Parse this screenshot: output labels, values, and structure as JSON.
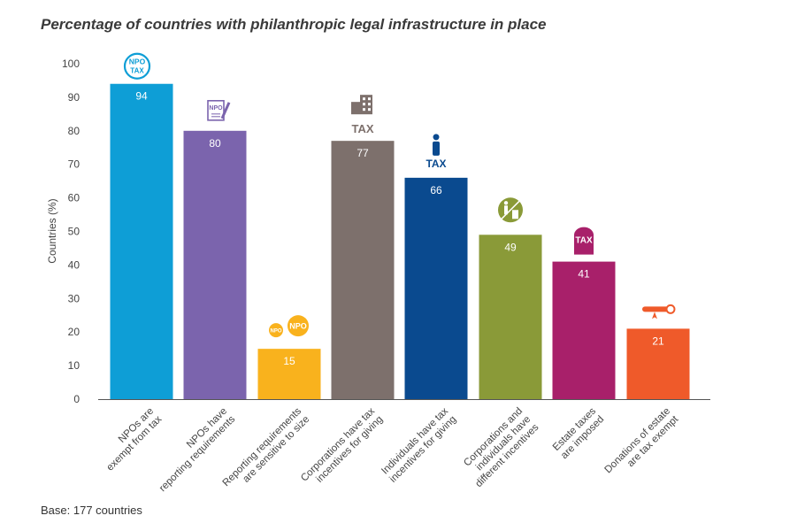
{
  "chart_data": {
    "type": "bar",
    "title": "Percentage of countries with philanthropic legal infrastructure in place",
    "ylabel": "Countries (%)",
    "xlabel": "",
    "ylim": [
      0,
      100
    ],
    "yticks": [
      0,
      10,
      20,
      30,
      40,
      50,
      60,
      70,
      80,
      90,
      100
    ],
    "categories": [
      [
        "NPOs are",
        "exempt from tax"
      ],
      [
        "NPOs have",
        "reporting requirements"
      ],
      [
        "Reporting requirements",
        "are sensitive to size"
      ],
      [
        "Corporations have tax",
        "incentives for giving"
      ],
      [
        "Individuals have tax",
        "incentives for giving"
      ],
      [
        "Corporations and",
        "individuals have",
        "different incentives"
      ],
      [
        "Estate taxes",
        "are imposed"
      ],
      [
        "Donations of estate",
        "are tax exempt"
      ]
    ],
    "values": [
      94,
      80,
      15,
      77,
      66,
      49,
      41,
      21
    ],
    "colors": [
      "#0e9ed6",
      "#7b64ad",
      "#f9b21d",
      "#7d706c",
      "#0a4a8f",
      "#8a9a38",
      "#a8206a",
      "#ef5a2a"
    ],
    "icons": [
      "npo-tax-badge-icon",
      "npo-document-pen-icon",
      "npo-size-badges-icon",
      "building-tax-icon",
      "person-tax-icon",
      "person-building-circle-icon",
      "tax-tombstone-icon",
      "certificate-scroll-icon"
    ],
    "icon_labels": {
      "npo": "NPO",
      "tax": "TAX"
    }
  },
  "footnote": "Base: 177 countries"
}
